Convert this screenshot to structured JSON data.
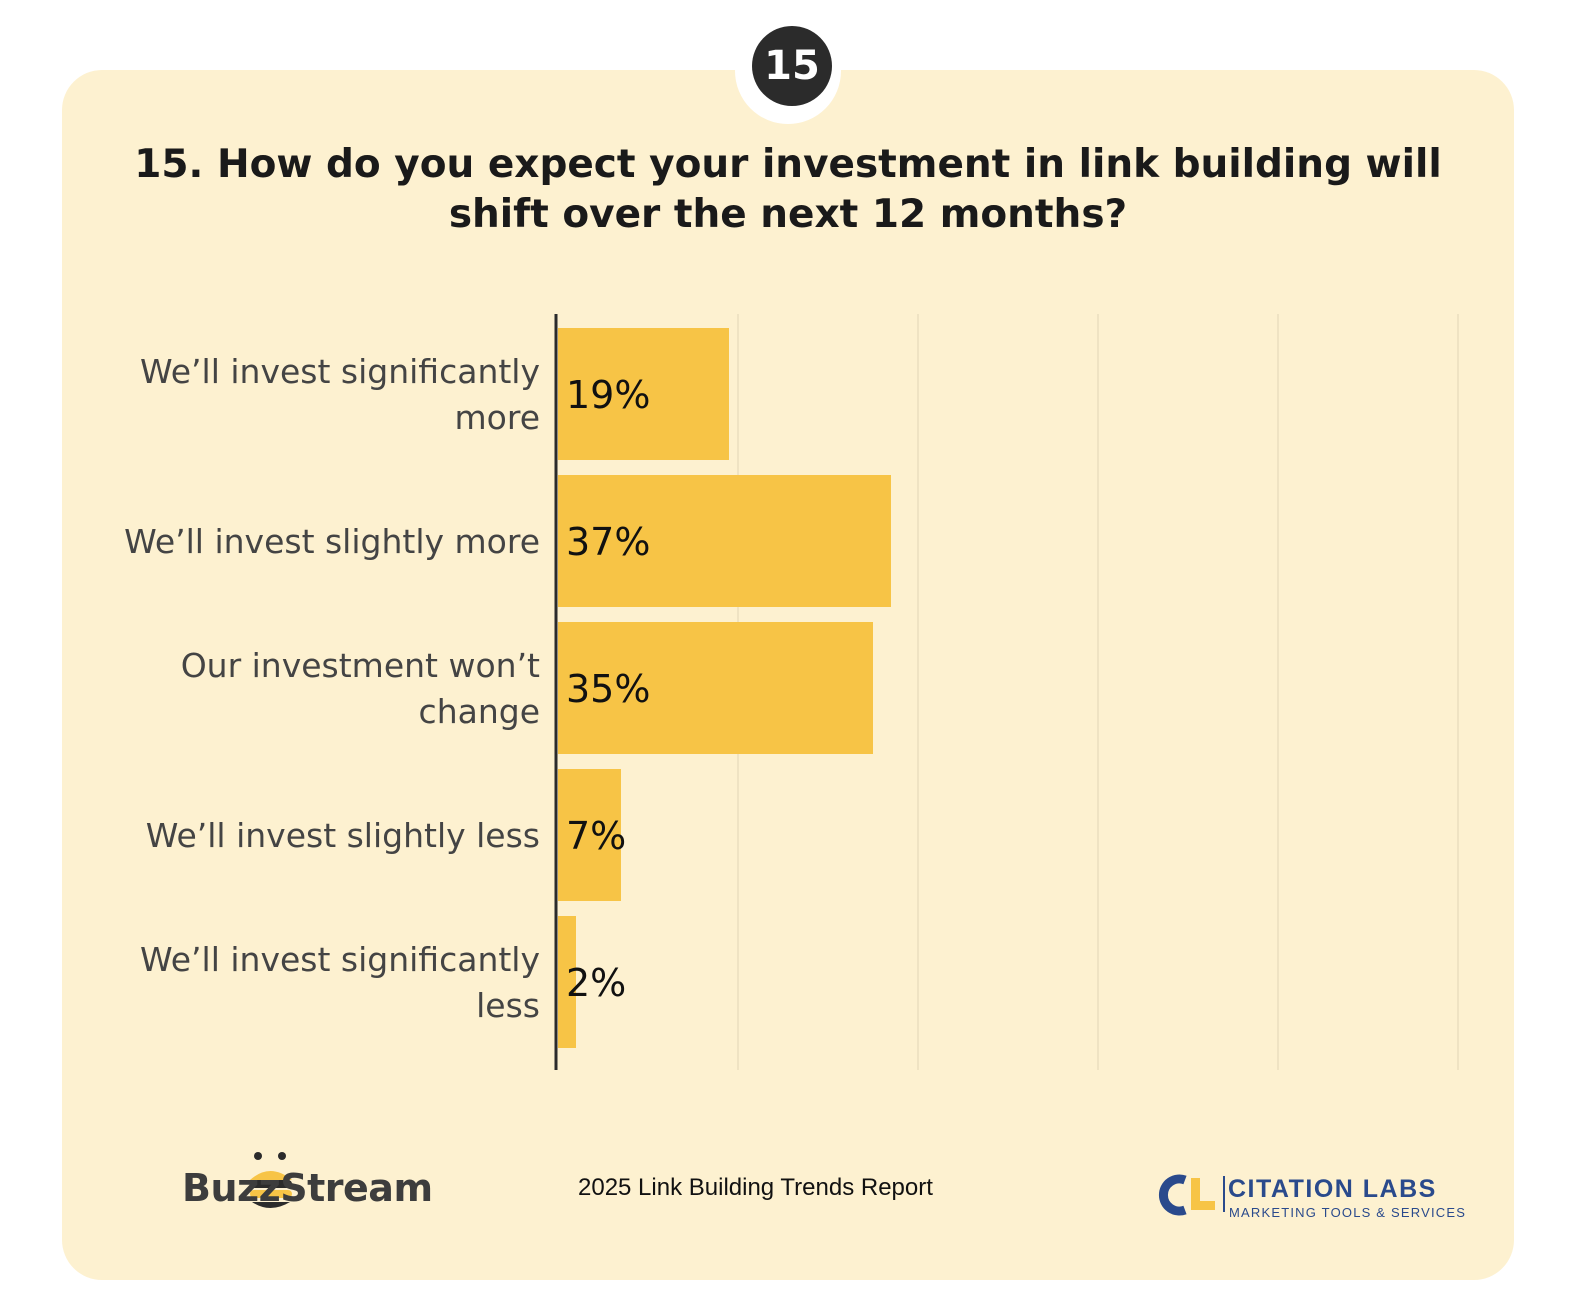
{
  "badge": "15",
  "chart_data": {
    "type": "bar",
    "orientation": "horizontal",
    "title": "15. How do you expect your investment in link building will shift over the next 12 months?",
    "categories": [
      "We’ll invest significantly more",
      "We’ll invest slightly more",
      "Our investment won’t change",
      "We’ll invest slightly less",
      "We’ll invest significantly less"
    ],
    "values": [
      19,
      37,
      35,
      7,
      2
    ],
    "value_labels": [
      "19%",
      "37%",
      "35%",
      "7%",
      "2%"
    ],
    "xlim": [
      0,
      100
    ],
    "grid": true,
    "bar_color": "#f7c446",
    "gridline_color": "#efe3c3"
  },
  "footer": {
    "report": "2025 Link Building Trends Report",
    "brand_left": "BuzzStream",
    "brand_right_name": "CITATION LABS",
    "brand_right_tagline": "MARKETING TOOLS & SERVICES"
  }
}
